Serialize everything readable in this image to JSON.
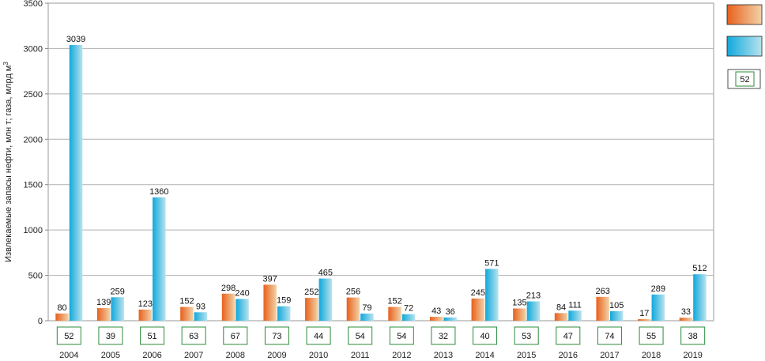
{
  "chart_data": {
    "type": "bar",
    "ylabel": "Извлекаемые запасы нефти, млн т; газа, млрд м",
    "ylabel_superscript": "3",
    "ylim": [
      0,
      3500
    ],
    "yticks": [
      0,
      500,
      1000,
      1500,
      2000,
      2500,
      3000,
      3500
    ],
    "grid": true,
    "legend_position": "right",
    "categories": [
      "2004",
      "2005",
      "2006",
      "2007",
      "2008",
      "2009",
      "2010",
      "2011",
      "2012",
      "2013",
      "2014",
      "2015",
      "2016",
      "2017",
      "2018",
      "2019"
    ],
    "series": [
      {
        "color": "#e8601c",
        "color_light": "#f3d3a8",
        "values": [
          80,
          139,
          123,
          152,
          298,
          397,
          252,
          256,
          152,
          43,
          245,
          135,
          84,
          263,
          17,
          33
        ]
      },
      {
        "color": "#10a8dc",
        "color_light": "#b8e3ee",
        "values": [
          3039,
          259,
          1360,
          93,
          240,
          159,
          465,
          79,
          72,
          36,
          571,
          213,
          111,
          105,
          289,
          512
        ]
      }
    ],
    "counts": [
      "52",
      "39",
      "51",
      "63",
      "67",
      "73",
      "44",
      "54",
      "54",
      "32",
      "40",
      "53",
      "47",
      "74",
      "55",
      "38"
    ],
    "count_color": "#2e8b3a",
    "legend": {
      "box_value": "52"
    }
  }
}
